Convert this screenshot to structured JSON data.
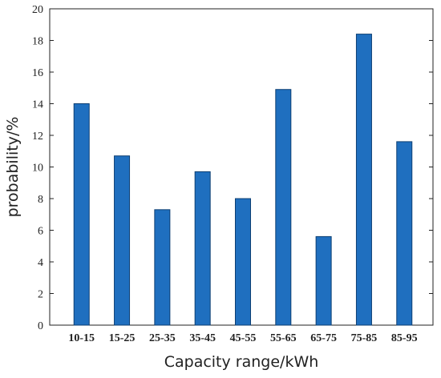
{
  "chart_data": {
    "type": "bar",
    "title": "",
    "xlabel": "Capacity range/kWh",
    "ylabel": "probability/%",
    "categories": [
      "10-15",
      "15-25",
      "25-35",
      "35-45",
      "45-55",
      "55-65",
      "65-75",
      "75-85",
      "85-95"
    ],
    "values": [
      14.0,
      10.7,
      7.3,
      9.7,
      8.0,
      14.9,
      5.6,
      18.4,
      11.6
    ],
    "ylim": [
      0,
      20
    ],
    "yticks": [
      0,
      2,
      4,
      6,
      8,
      10,
      12,
      14,
      16,
      18,
      20
    ],
    "grid": false,
    "legend": "none",
    "bar_color": "#1f6fbf",
    "bar_edge_color": "#0d3f73"
  }
}
